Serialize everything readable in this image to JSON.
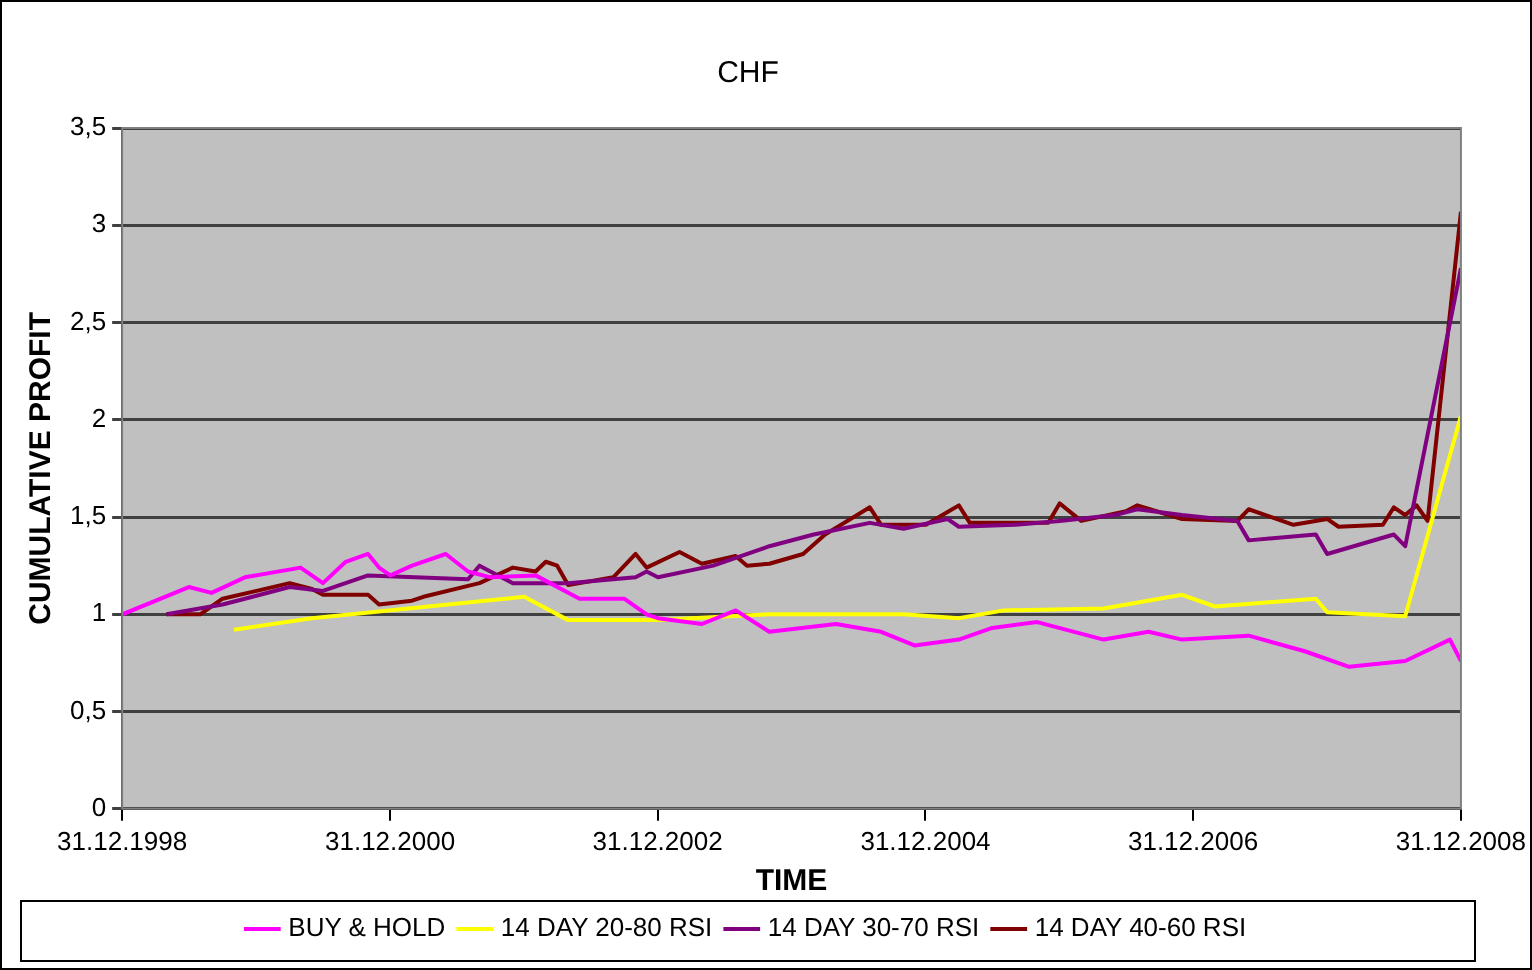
{
  "chart_data": {
    "type": "line",
    "title": "CHF",
    "xlabel": "TIME",
    "ylabel": "CUMULATIVE PROFIT",
    "xlim": [
      "1998-12-31",
      "2008-12-31"
    ],
    "xticks": [
      {
        "value": "1998-12-31",
        "label": "31.12.1998"
      },
      {
        "value": "2000-12-31",
        "label": "31.12.2000"
      },
      {
        "value": "2002-12-31",
        "label": "31.12.2002"
      },
      {
        "value": "2004-12-31",
        "label": "31.12.2004"
      },
      {
        "value": "2006-12-31",
        "label": "31.12.2006"
      },
      {
        "value": "2008-12-31",
        "label": "31.12.2008"
      }
    ],
    "ylim": [
      0,
      3.5
    ],
    "yticks": [
      0,
      {
        "value": 0.5,
        "label": "0,5"
      },
      1,
      {
        "value": 1.5,
        "label": "1,5"
      },
      2,
      {
        "value": 2.5,
        "label": "2,5"
      },
      3,
      {
        "value": 3.5,
        "label": "3,5"
      }
    ],
    "grid": "y",
    "legend": "bottom",
    "marker": "none",
    "line_style": "solid",
    "series": [
      {
        "name": "BUY & HOLD",
        "color": "#ff00ff",
        "x": [
          "1999-01",
          "1999-07",
          "1999-09",
          "1999-12",
          "2000-05",
          "2000-07",
          "2000-09",
          "2000-11",
          "2000-12",
          "2001-01",
          "2001-03",
          "2001-06",
          "2001-08",
          "2001-10",
          "2002-02",
          "2002-06",
          "2002-10",
          "2002-12",
          "2003-01",
          "2003-05",
          "2003-08",
          "2003-11",
          "2004-05",
          "2004-09",
          "2004-12",
          "2005-04",
          "2005-07",
          "2005-11",
          "2006-05",
          "2006-09",
          "2006-12",
          "2007-06",
          "2007-11",
          "2008-03",
          "2008-08",
          "2008-12",
          "2008-12-31"
        ],
        "values": [
          1.0,
          1.14,
          1.11,
          1.19,
          1.24,
          1.16,
          1.27,
          1.31,
          1.24,
          1.2,
          1.25,
          1.31,
          1.22,
          1.19,
          1.2,
          1.08,
          1.08,
          1.0,
          0.98,
          0.95,
          1.02,
          0.91,
          0.95,
          0.91,
          0.84,
          0.87,
          0.93,
          0.96,
          0.87,
          0.91,
          0.87,
          0.89,
          0.81,
          0.73,
          0.76,
          0.87,
          0.76
        ]
      },
      {
        "name": "14 DAY 20-80 RSI",
        "color": "#ffff00",
        "x": [
          "1999-11",
          "2000-06",
          "2002-01",
          "2002-05",
          "2003-01",
          "2003-11",
          "2004-11",
          "2005-04",
          "2005-08",
          "2006-05",
          "2006-12",
          "2007-03",
          "2007-12",
          "2008-01",
          "2008-08",
          "2008-12-31"
        ],
        "values": [
          0.92,
          0.98,
          1.09,
          0.97,
          0.97,
          1.0,
          1.0,
          0.98,
          1.02,
          1.03,
          1.1,
          1.04,
          1.08,
          1.01,
          0.99,
          2.02
        ]
      },
      {
        "name": "14 DAY 30-70 RSI",
        "color": "#800080",
        "x": [
          "1999-05",
          "1999-10",
          "2000-04",
          "2000-07",
          "2000-11",
          "2001-08",
          "2001-09",
          "2001-12",
          "2002-05",
          "2002-11",
          "2002-12",
          "2003-01",
          "2003-06",
          "2003-11",
          "2004-03",
          "2004-08",
          "2004-11",
          "2005-03",
          "2005-04",
          "2005-09",
          "2006-01",
          "2006-06",
          "2006-08",
          "2006-12",
          "2007-05",
          "2007-06",
          "2007-12",
          "2008-01",
          "2008-07",
          "2008-08",
          "2008-12-31"
        ],
        "values": [
          1.0,
          1.05,
          1.14,
          1.12,
          1.2,
          1.18,
          1.25,
          1.16,
          1.16,
          1.19,
          1.22,
          1.19,
          1.25,
          1.35,
          1.41,
          1.47,
          1.44,
          1.49,
          1.45,
          1.46,
          1.48,
          1.51,
          1.54,
          1.51,
          1.48,
          1.38,
          1.41,
          1.31,
          1.41,
          1.35,
          2.78
        ]
      },
      {
        "name": "14 DAY 40-60 RSI",
        "color": "#800000",
        "x": [
          "1999-05",
          "1999-08",
          "1999-10",
          "2000-04",
          "2000-06",
          "2000-07",
          "2000-11",
          "2000-12",
          "2001-03",
          "2001-04",
          "2001-09",
          "2001-12",
          "2002-02",
          "2002-03",
          "2002-04",
          "2002-05",
          "2002-09",
          "2002-11",
          "2002-12",
          "2003-03",
          "2003-05",
          "2003-08",
          "2003-09",
          "2003-11",
          "2004-02",
          "2004-04",
          "2004-08",
          "2004-09",
          "2005-01",
          "2005-04",
          "2005-05",
          "2005-12",
          "2006-01",
          "2006-03",
          "2006-07",
          "2006-08",
          "2006-12",
          "2007-05",
          "2007-06",
          "2007-10",
          "2008-01",
          "2008-02",
          "2008-06",
          "2008-07",
          "2008-08",
          "2008-09",
          "2008-10",
          "2008-12-31"
        ],
        "values": [
          1.0,
          1.0,
          1.08,
          1.16,
          1.13,
          1.1,
          1.1,
          1.05,
          1.07,
          1.09,
          1.16,
          1.24,
          1.22,
          1.27,
          1.25,
          1.15,
          1.19,
          1.31,
          1.24,
          1.32,
          1.26,
          1.3,
          1.25,
          1.26,
          1.31,
          1.41,
          1.55,
          1.46,
          1.46,
          1.56,
          1.47,
          1.47,
          1.57,
          1.48,
          1.53,
          1.56,
          1.49,
          1.48,
          1.54,
          1.46,
          1.49,
          1.45,
          1.46,
          1.55,
          1.51,
          1.56,
          1.48,
          3.07
        ]
      }
    ]
  }
}
